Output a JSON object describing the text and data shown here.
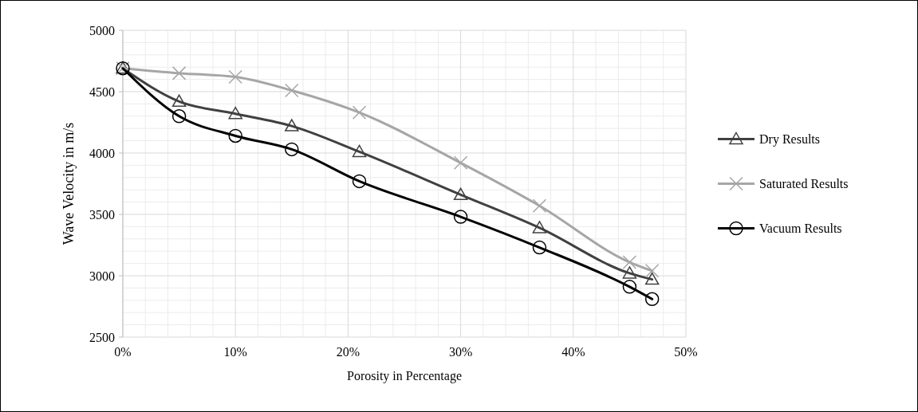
{
  "chart_data": {
    "type": "line",
    "xlabel": "Porosity in Percentage",
    "ylabel": "Wave Velocity in m/s",
    "x": [
      0,
      5,
      10,
      15,
      21,
      30,
      37,
      45,
      47
    ],
    "xlim": [
      0,
      50
    ],
    "xticks": [
      {
        "value": 0,
        "label": "0%"
      },
      {
        "value": 10,
        "label": "10%"
      },
      {
        "value": 20,
        "label": "20%"
      },
      {
        "value": 30,
        "label": "30%"
      },
      {
        "value": 40,
        "label": "40%"
      },
      {
        "value": 50,
        "label": "50%"
      }
    ],
    "ylim": [
      2500,
      5000
    ],
    "yticks": [
      2500,
      3000,
      3500,
      4000,
      4500,
      5000
    ],
    "grid": true,
    "legend": "right",
    "line_style": "solid",
    "series": [
      {
        "name": "Dry Results",
        "color": "#404040",
        "marker": "triangle",
        "values": [
          4690,
          4420,
          4320,
          4220,
          4010,
          3660,
          3390,
          3020,
          2970
        ]
      },
      {
        "name": "Saturated Results",
        "color": "#a6a6a6",
        "marker": "cross",
        "values": [
          4690,
          4650,
          4620,
          4510,
          4330,
          3920,
          3570,
          3110,
          3040
        ]
      },
      {
        "name": "Vacuum Results",
        "color": "#000000",
        "marker": "circle",
        "values": [
          4690,
          4300,
          4140,
          4030,
          3770,
          3480,
          3230,
          2910,
          2810
        ]
      }
    ]
  }
}
